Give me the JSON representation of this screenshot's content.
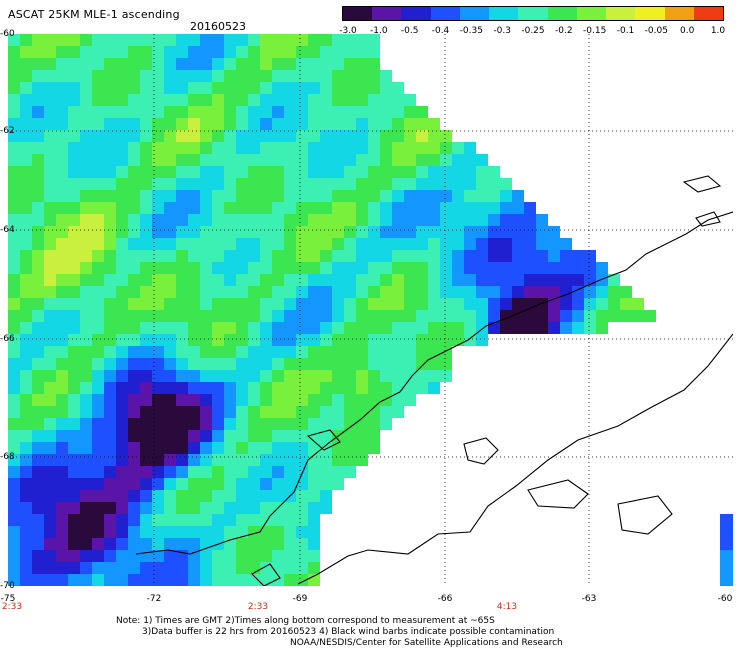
{
  "header": {
    "title": "ASCAT 25KM MLE-1 ascending",
    "date": "20160523"
  },
  "colorbar": {
    "labels": [
      "-3.0",
      "-1.0",
      "-0.5",
      "-0.4",
      "-0.35",
      "-0.3",
      "-0.25",
      "-0.2",
      "-0.15",
      "-0.1",
      "-0.05",
      "0.0",
      "1.0"
    ],
    "colors": [
      "#2a0a3c",
      "#5a14a8",
      "#2020d0",
      "#1e50ff",
      "#1496ff",
      "#14d7e6",
      "#3cf0b4",
      "#3ce650",
      "#78f03c",
      "#c8f03c",
      "#f0f020",
      "#f0a014",
      "#f03c14"
    ]
  },
  "map": {
    "lat_labels": [
      "-60",
      "-62",
      "-64",
      "-66",
      "-68",
      "-70"
    ],
    "lon_labels": [
      "-75",
      "-72",
      "-69",
      "-66",
      "-63",
      "-60"
    ],
    "time_labels": [
      "2:33",
      "2:33",
      "4:13"
    ],
    "land_color": "#ffffff",
    "coast_color": "#000000",
    "grid_color": "#000000"
  },
  "notes": {
    "line1": "Note: 1) Times are GMT 2)Times along bottom correspond to measurement at ~65S",
    "line2": "3)Data buffer is 22 hrs from 20160523 4) Black wind barbs indicate possible contamination",
    "line3": "NOAA/NESDIS/Center for Satellite Applications and Research"
  }
}
